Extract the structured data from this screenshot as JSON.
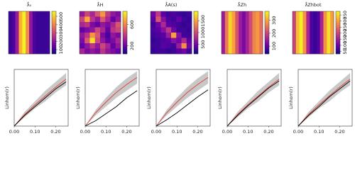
{
  "chart_data": [
    {
      "type": "heatmap",
      "title": "λ̂₀",
      "zlim": [
        50,
        560
      ],
      "zticks": [
        100,
        200,
        300,
        400,
        500
      ],
      "colormap": [
        "#0d0887",
        "#6a00a8",
        "#b12a90",
        "#e16462",
        "#fca636",
        "#f0f921"
      ],
      "z": [
        [
          100,
          120,
          220,
          470,
          550,
          420,
          210,
          120,
          100,
          100,
          100,
          100
        ],
        [
          100,
          120,
          220,
          470,
          550,
          420,
          210,
          120,
          100,
          100,
          100,
          100
        ],
        [
          100,
          120,
          220,
          470,
          550,
          420,
          210,
          120,
          100,
          100,
          100,
          100
        ],
        [
          100,
          120,
          220,
          470,
          550,
          420,
          210,
          120,
          100,
          100,
          100,
          100
        ]
      ]
    },
    {
      "type": "heatmap",
      "title": "λ̂H",
      "zlim": [
        50,
        850
      ],
      "zticks": [
        200,
        600
      ],
      "colormap": [
        "#0d0887",
        "#6a00a8",
        "#b12a90",
        "#e16462",
        "#fca636",
        "#f0f921"
      ],
      "z": [
        [
          300,
          450,
          350,
          500,
          650,
          420,
          300,
          250
        ],
        [
          450,
          700,
          400,
          300,
          500,
          350,
          200,
          300
        ],
        [
          350,
          400,
          250,
          200,
          300,
          250,
          350,
          500
        ],
        [
          200,
          250,
          300,
          450,
          350,
          200,
          400,
          450
        ],
        [
          300,
          400,
          650,
          500,
          250,
          150,
          300,
          250
        ],
        [
          250,
          500,
          800,
          450,
          300,
          200,
          250,
          350
        ],
        [
          200,
          300,
          400,
          300,
          450,
          350,
          200,
          300
        ],
        [
          350,
          250,
          300,
          250,
          400,
          300,
          250,
          200
        ]
      ]
    },
    {
      "type": "heatmap",
      "title": "λ̂A(s)",
      "zlim": [
        100,
        1900
      ],
      "zticks": [
        500,
        1000,
        1500
      ],
      "colormap": [
        "#0d0887",
        "#6a00a8",
        "#b12a90",
        "#e16462",
        "#fca636",
        "#f0f921"
      ],
      "z": [
        [
          500,
          900,
          400,
          300,
          350,
          300,
          250,
          300
        ],
        [
          400,
          1100,
          600,
          350,
          300,
          450,
          300,
          250
        ],
        [
          300,
          500,
          800,
          400,
          350,
          300,
          250,
          300
        ],
        [
          350,
          400,
          600,
          900,
          500,
          300,
          300,
          250
        ],
        [
          300,
          350,
          400,
          700,
          1500,
          600,
          300,
          300
        ],
        [
          250,
          300,
          350,
          400,
          600,
          500,
          800,
          400
        ],
        [
          300,
          300,
          400,
          350,
          300,
          700,
          1400,
          500
        ],
        [
          250,
          300,
          300,
          250,
          300,
          400,
          500,
          300
        ]
      ]
    },
    {
      "type": "heatmap",
      "title": "λ̂Zh",
      "zlim": [
        40,
        370
      ],
      "zticks": [
        100,
        200,
        300
      ],
      "colormap": [
        "#0d0887",
        "#6a00a8",
        "#b12a90",
        "#e16462",
        "#fca636",
        "#f0f921"
      ],
      "z": [
        [
          150,
          260,
          340,
          300,
          220,
          150,
          120,
          160,
          210,
          270,
          290,
          250
        ],
        [
          150,
          260,
          340,
          300,
          220,
          150,
          120,
          160,
          210,
          270,
          290,
          250
        ],
        [
          150,
          260,
          340,
          300,
          220,
          150,
          120,
          160,
          210,
          270,
          290,
          250
        ],
        [
          150,
          260,
          340,
          300,
          220,
          150,
          120,
          160,
          210,
          270,
          290,
          250
        ]
      ]
    },
    {
      "type": "heatmap",
      "title": "λ̂Zhbot",
      "zlim": [
        30,
        380
      ],
      "zticks": [
        50,
        100,
        150,
        200,
        250,
        300,
        350
      ],
      "colormap": [
        "#0d0887",
        "#6a00a8",
        "#b12a90",
        "#e16462",
        "#fca636",
        "#f0f921"
      ],
      "z": [
        [
          200,
          330,
          370,
          290,
          160,
          80,
          60,
          80,
          160,
          290,
          360,
          300
        ],
        [
          200,
          330,
          370,
          290,
          160,
          80,
          60,
          80,
          160,
          290,
          360,
          300
        ],
        [
          200,
          330,
          370,
          290,
          160,
          80,
          60,
          80,
          160,
          290,
          360,
          300
        ],
        [
          200,
          330,
          370,
          290,
          160,
          80,
          60,
          80,
          160,
          290,
          360,
          300
        ]
      ]
    },
    {
      "type": "envelope",
      "ylabel": "Linhom(r)",
      "x": [
        0,
        0.05,
        0.1,
        0.15,
        0.2,
        0.25
      ],
      "xlim": [
        0,
        0.26
      ],
      "ylim": [
        0,
        0.32
      ],
      "xticks": [
        {
          "value": 0,
          "label": "0.00"
        },
        {
          "value": 0.1,
          "label": "0.10"
        },
        {
          "value": 0.2,
          "label": "0.20"
        }
      ],
      "lower": [
        0,
        0.05,
        0.1,
        0.14,
        0.19,
        0.23
      ],
      "upper": [
        0,
        0.08,
        0.14,
        0.2,
        0.25,
        0.3
      ],
      "mean": [
        0,
        0.065,
        0.12,
        0.17,
        0.22,
        0.265
      ],
      "observed": [
        0,
        0.06,
        0.11,
        0.16,
        0.21,
        0.25
      ],
      "envelope_color": "#c8c8c8",
      "mean_color": "#e0403a",
      "observed_color": "#000000"
    },
    {
      "type": "envelope",
      "ylabel": "Linhom(r)",
      "x": [
        0,
        0.05,
        0.1,
        0.15,
        0.2,
        0.25
      ],
      "xlim": [
        0,
        0.26
      ],
      "ylim": [
        0,
        0.32
      ],
      "xticks": [
        {
          "value": 0,
          "label": "0.00"
        },
        {
          "value": 0.1,
          "label": "0.10"
        },
        {
          "value": 0.2,
          "label": "0.20"
        }
      ],
      "lower": [
        0,
        0.06,
        0.11,
        0.16,
        0.2,
        0.24
      ],
      "upper": [
        0,
        0.09,
        0.16,
        0.22,
        0.27,
        0.31
      ],
      "mean": [
        0,
        0.075,
        0.135,
        0.19,
        0.235,
        0.275
      ],
      "observed": [
        0,
        0.03,
        0.07,
        0.11,
        0.16,
        0.2
      ],
      "envelope_color": "#c8c8c8",
      "mean_color": "#e0403a",
      "observed_color": "#000000"
    },
    {
      "type": "envelope",
      "ylabel": "Linhom(r)",
      "x": [
        0,
        0.05,
        0.1,
        0.15,
        0.2,
        0.25
      ],
      "xlim": [
        0,
        0.26
      ],
      "ylim": [
        0,
        0.32
      ],
      "xticks": [
        {
          "value": 0,
          "label": "0.00"
        },
        {
          "value": 0.1,
          "label": "0.10"
        },
        {
          "value": 0.2,
          "label": "0.20"
        }
      ],
      "lower": [
        0,
        0.06,
        0.11,
        0.16,
        0.2,
        0.24
      ],
      "upper": [
        0,
        0.09,
        0.16,
        0.22,
        0.27,
        0.31
      ],
      "mean": [
        0,
        0.075,
        0.135,
        0.19,
        0.235,
        0.275
      ],
      "observed": [
        0,
        0.035,
        0.075,
        0.12,
        0.165,
        0.205
      ],
      "envelope_color": "#c8c8c8",
      "mean_color": "#e0403a",
      "observed_color": "#000000"
    },
    {
      "type": "envelope",
      "ylabel": "Linhom(r)",
      "x": [
        0,
        0.05,
        0.1,
        0.15,
        0.2,
        0.25
      ],
      "xlim": [
        0,
        0.26
      ],
      "ylim": [
        0,
        0.32
      ],
      "xticks": [
        {
          "value": 0,
          "label": "0.00"
        },
        {
          "value": 0.1,
          "label": "0.10"
        },
        {
          "value": 0.2,
          "label": "0.20"
        }
      ],
      "lower": [
        0,
        0.05,
        0.1,
        0.14,
        0.19,
        0.23
      ],
      "upper": [
        0,
        0.08,
        0.14,
        0.2,
        0.25,
        0.3
      ],
      "mean": [
        0,
        0.065,
        0.12,
        0.17,
        0.22,
        0.265
      ],
      "observed": [
        0,
        0.06,
        0.115,
        0.165,
        0.215,
        0.255
      ],
      "envelope_color": "#c8c8c8",
      "mean_color": "#e0403a",
      "observed_color": "#000000"
    },
    {
      "type": "envelope",
      "ylabel": "Linhom(r)",
      "x": [
        0,
        0.05,
        0.1,
        0.15,
        0.2,
        0.25
      ],
      "xlim": [
        0,
        0.26
      ],
      "ylim": [
        0,
        0.32
      ],
      "xticks": [
        {
          "value": 0,
          "label": "0.00"
        },
        {
          "value": 0.1,
          "label": "0.10"
        },
        {
          "value": 0.2,
          "label": "0.20"
        }
      ],
      "lower": [
        0,
        0.05,
        0.1,
        0.14,
        0.19,
        0.23
      ],
      "upper": [
        0,
        0.08,
        0.14,
        0.2,
        0.25,
        0.3
      ],
      "mean": [
        0,
        0.065,
        0.12,
        0.17,
        0.22,
        0.265
      ],
      "observed": [
        0,
        0.06,
        0.11,
        0.165,
        0.21,
        0.255
      ],
      "envelope_color": "#c8c8c8",
      "mean_color": "#e0403a",
      "observed_color": "#000000"
    }
  ]
}
